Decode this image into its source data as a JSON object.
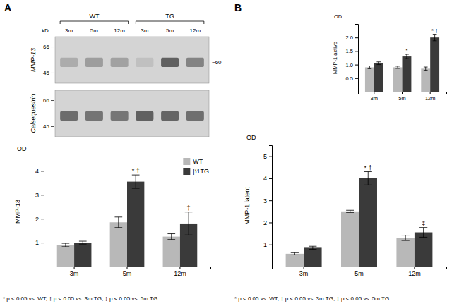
{
  "chart_data": [
    {
      "type": "blot",
      "panel_label": "A",
      "unit_label": "kD",
      "groups": [
        {
          "name": "WT",
          "lanes": [
            "3m",
            "5m",
            "12m"
          ]
        },
        {
          "name": "TG",
          "lanes": [
            "3m",
            "5m",
            "12m"
          ]
        }
      ],
      "blots": [
        {
          "name": "MMP-13",
          "color": "#505050",
          "markers": [
            66,
            45
          ],
          "band_label": "~60",
          "intensity": [
            0.3,
            0.42,
            0.38,
            0.15,
            0.88,
            0.62
          ]
        },
        {
          "name": "Calsequestrin",
          "color": "#404040",
          "markers": [
            66,
            45
          ],
          "intensity": [
            0.7,
            0.65,
            0.63,
            0.78,
            0.75,
            0.68
          ]
        }
      ]
    },
    {
      "type": "bar",
      "categories": [
        "3m",
        "5m",
        "12m"
      ],
      "ylabel": "MMP-13",
      "y_unit": "OD",
      "ylim": [
        0,
        4.6
      ],
      "yticks": [
        1,
        2,
        3,
        4
      ],
      "series": [
        {
          "name": "WT",
          "color": "#b8b8b8",
          "values": [
            0.9,
            1.85,
            1.25
          ],
          "errors": [
            0.07,
            0.22,
            0.12
          ]
        },
        {
          "name": "β1TG",
          "color": "#3a3a3a",
          "values": [
            1.0,
            3.55,
            1.8
          ],
          "errors": [
            0.06,
            0.28,
            0.48
          ]
        }
      ],
      "annotations": [
        {
          "text": "* †",
          "category": "5m",
          "series": 1
        },
        {
          "text": "‡",
          "category": "12m",
          "series": 1
        }
      ],
      "legend": "upper right",
      "footnote": "* p < 0.05 vs. WT; † p < 0.05 vs. 3m TG; ‡ p < 0.05 vs. 5m TG"
    },
    {
      "type": "bar",
      "panel_label": "B",
      "categories": [
        "3m",
        "5m",
        "12m"
      ],
      "ylabel": "MMP-1 latent",
      "y_unit": "OD",
      "ylim": [
        0,
        5.5
      ],
      "yticks": [
        1,
        2,
        3,
        4,
        5
      ],
      "series": [
        {
          "color": "#b8b8b8",
          "values": [
            0.58,
            2.5,
            1.3
          ],
          "errors": [
            0.05,
            0.05,
            0.12
          ]
        },
        {
          "color": "#3a3a3a",
          "values": [
            0.85,
            4.0,
            1.55
          ],
          "errors": [
            0.07,
            0.3,
            0.22
          ]
        }
      ],
      "annotations": [
        {
          "text": "* †",
          "category": "5m",
          "series": 1
        },
        {
          "text": "‡",
          "category": "12m",
          "series": 1
        }
      ],
      "footnote": "* p < 0.05 vs. WT; † p < 0.05 vs. 3m TG; ‡ p < 0.05 vs. 5m TG"
    },
    {
      "type": "bar",
      "categories": [
        "3m",
        "5m",
        "12m"
      ],
      "ylabel": "MMP-1 active",
      "y_unit": "OD",
      "ylim": [
        0,
        2.5
      ],
      "yticks": [
        0.5,
        {
          "value": 1,
          "label": "1.0"
        },
        1.5,
        {
          "value": 2,
          "label": "2.0"
        }
      ],
      "series": [
        {
          "color": "#b8b8b8",
          "values": [
            0.9,
            0.9,
            0.85
          ],
          "errors": [
            0.05,
            0.04,
            0.06
          ]
        },
        {
          "color": "#3a3a3a",
          "values": [
            1.05,
            1.3,
            2.0
          ],
          "errors": [
            0.05,
            0.08,
            0.12
          ]
        }
      ],
      "annotations": [
        {
          "text": "*",
          "category": "5m",
          "series": 1
        },
        {
          "text": "* †",
          "category": "12m",
          "series": 1
        }
      ]
    }
  ]
}
